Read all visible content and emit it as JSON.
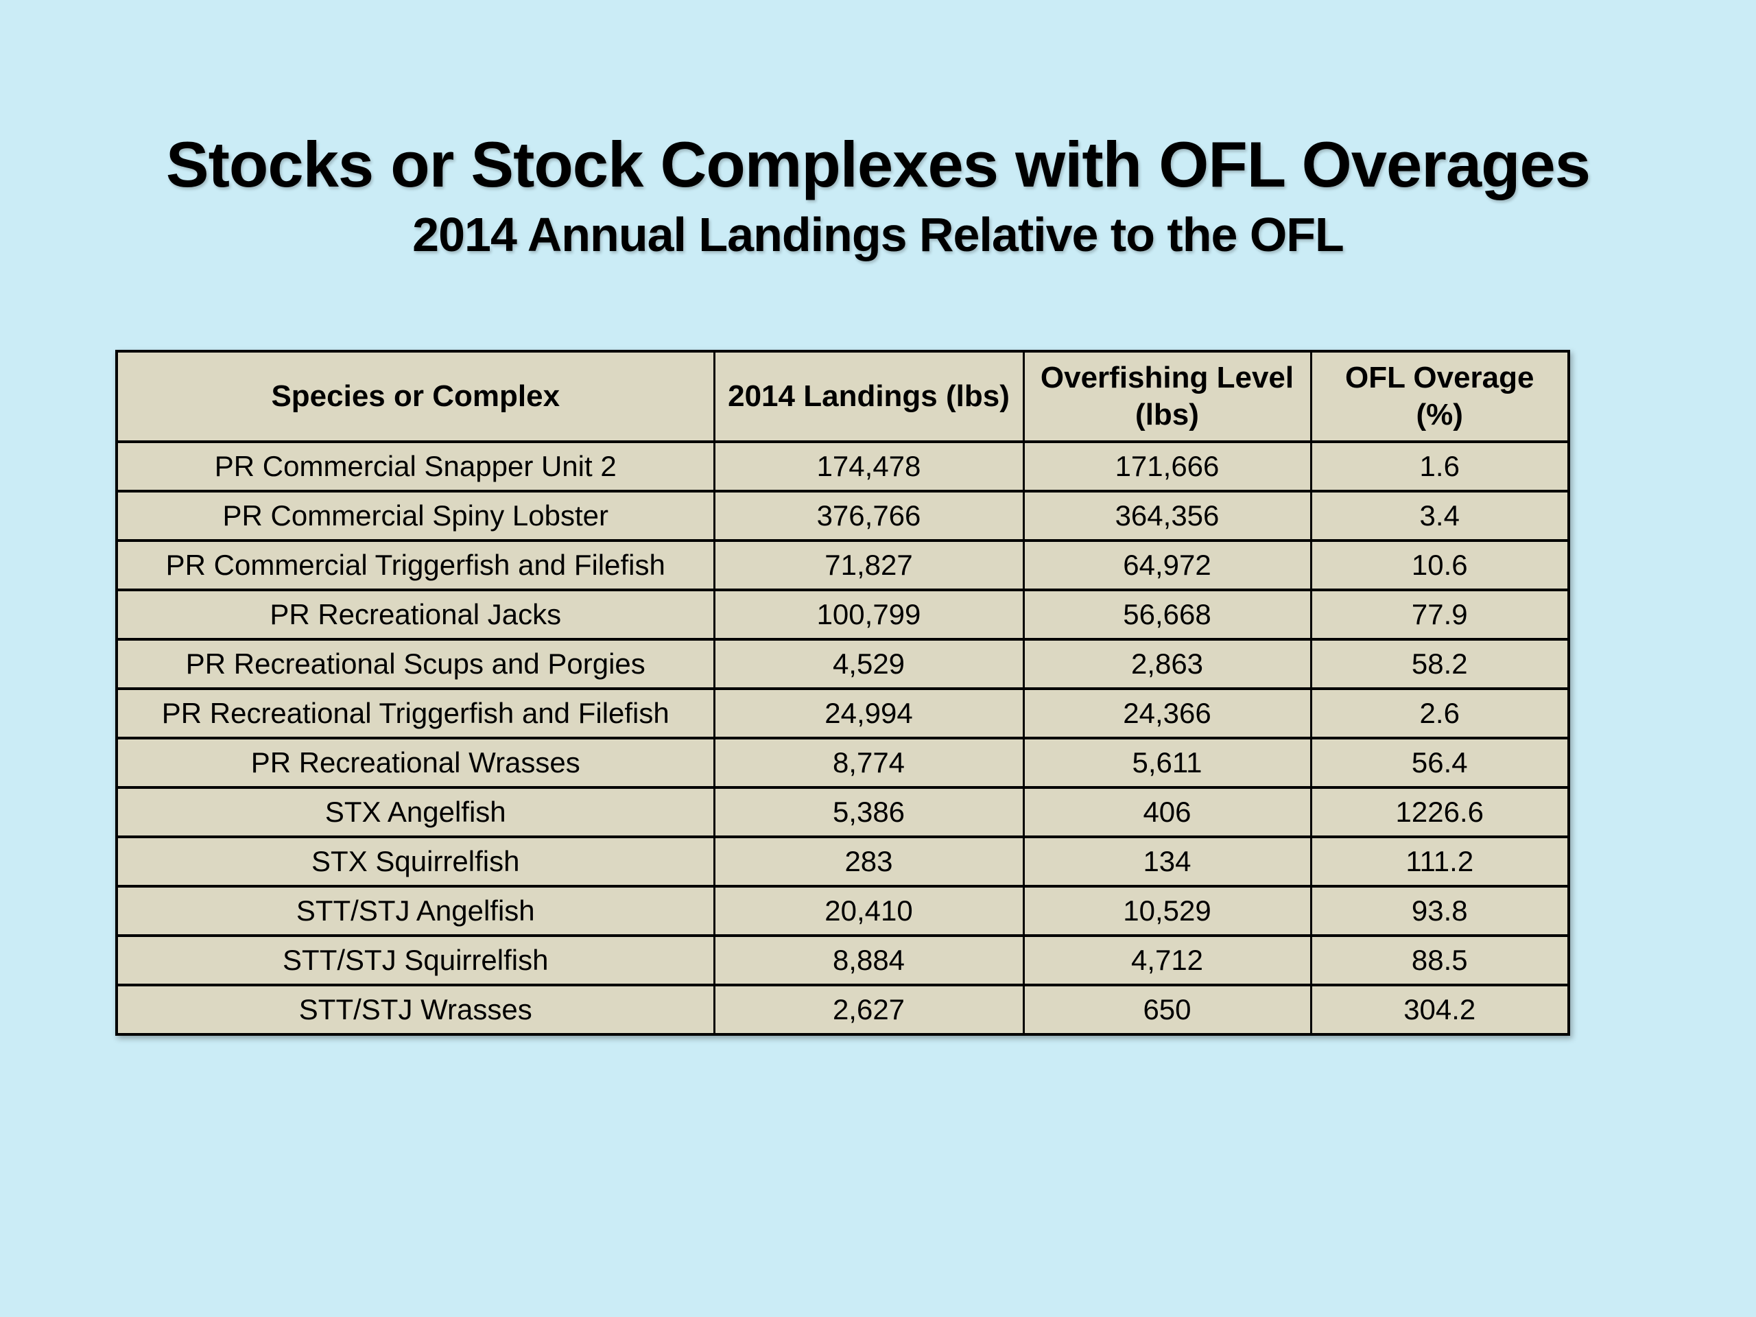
{
  "theme": {
    "background_color": "#cbecf6",
    "table_cell_color": "#dcd8c2",
    "table_border_color": "#000000",
    "text_color": "#000000"
  },
  "header": {
    "title": "Stocks or Stock Complexes with OFL Overages",
    "subtitle": "2014 Annual Landings Relative to the OFL"
  },
  "table": {
    "columns": [
      "Species or Complex",
      "2014 Landings (lbs)",
      "Overfishing Level (lbs)",
      "OFL Overage (%)"
    ],
    "rows": [
      [
        "PR Commercial Snapper Unit 2",
        "174,478",
        "171,666",
        "1.6"
      ],
      [
        "PR Commercial Spiny Lobster",
        "376,766",
        "364,356",
        "3.4"
      ],
      [
        "PR Commercial Triggerfish and Filefish",
        "71,827",
        "64,972",
        "10.6"
      ],
      [
        "PR Recreational Jacks",
        "100,799",
        "56,668",
        "77.9"
      ],
      [
        "PR Recreational Scups and Porgies",
        "4,529",
        "2,863",
        "58.2"
      ],
      [
        "PR Recreational Triggerfish and Filefish",
        "24,994",
        "24,366",
        "2.6"
      ],
      [
        "PR Recreational Wrasses",
        "8,774",
        "5,611",
        "56.4"
      ],
      [
        "STX Angelfish",
        "5,386",
        "406",
        "1226.6"
      ],
      [
        "STX Squirrelfish",
        "283",
        "134",
        "111.2"
      ],
      [
        "STT/STJ Angelfish",
        "20,410",
        "10,529",
        "93.8"
      ],
      [
        "STT/STJ Squirrelfish",
        "8,884",
        "4,712",
        "88.5"
      ],
      [
        "STT/STJ Wrasses",
        "2,627",
        "650",
        "304.2"
      ]
    ]
  }
}
